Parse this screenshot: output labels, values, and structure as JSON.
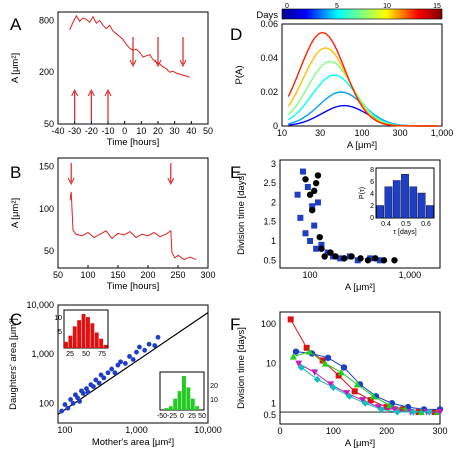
{
  "panels": {
    "A": {
      "letter": "A",
      "xlabel": "Time [hours]",
      "ylabel": "A [μm²]",
      "xticks": [
        "-40",
        "-30",
        "-20",
        "-10",
        "0",
        "10",
        "20",
        "30",
        "40",
        "50"
      ],
      "yticks": [
        "800",
        "200",
        "50"
      ]
    },
    "B": {
      "letter": "B",
      "xlabel": "Time [hours]",
      "ylabel": "A [μm²]",
      "xticks": [
        "50",
        "100",
        "150",
        "200",
        "250",
        "300"
      ],
      "yticks": [
        "150",
        "100",
        "50"
      ]
    },
    "C": {
      "letter": "C",
      "xlabel": "Mother's area [μm²]",
      "ylabel": "Daughters' area [μm²]",
      "xticks": [
        "100",
        "1,000",
        "10,000"
      ],
      "yticks": [
        "10,000",
        "1,000",
        "100"
      ],
      "inset1": {
        "xticks": [
          "25",
          "50",
          "75"
        ],
        "yticks": [
          "10",
          "5"
        ]
      },
      "inset2": {
        "xticks": [
          "-50",
          "-25",
          "0",
          "25",
          "50"
        ],
        "yticks": [
          "10",
          "20"
        ]
      }
    },
    "D": {
      "letter": "D",
      "xlabel": "A [μm²]",
      "ylabel": "P(A)",
      "colorbar_label": "Days",
      "colorbar_ticks": [
        "0",
        "5",
        "10",
        "15"
      ],
      "xticks": [
        "10",
        "30",
        "100",
        "300",
        "1,000"
      ],
      "yticks": [
        "0.06",
        "0.04",
        "0.02",
        "0"
      ]
    },
    "E": {
      "letter": "E",
      "xlabel": "A [μm²]",
      "ylabel": "Division time [days]",
      "xticks": [
        "100",
        "1,000"
      ],
      "yticks": [
        "3",
        "2.5",
        "2",
        "1.5",
        "1",
        "0.5"
      ],
      "inset": {
        "xlabel": "τ [days]",
        "ylabel": "P(τ)",
        "xticks": [
          "0.4",
          "0.5",
          "0.6"
        ],
        "yticks": [
          "8",
          "6",
          "4",
          "2",
          "0"
        ]
      }
    },
    "F": {
      "letter": "F",
      "xlabel": "A [μm²]",
      "ylabel": "Division time [days]",
      "xticks": [
        "0",
        "100",
        "200",
        "300"
      ],
      "yticks": [
        "100",
        "10",
        "1",
        "0.5"
      ]
    }
  },
  "colors": {
    "trace": "#e02020",
    "blue": "#1e3ec8",
    "black": "#000000",
    "red_hist": "#e01010",
    "green_hist": "#22cc22"
  },
  "chart_data": [
    {
      "panel": "A",
      "type": "line",
      "xlim": [
        -40,
        50
      ],
      "ylim_log": [
        50,
        1000
      ],
      "series": [
        {
          "x": [
            -33,
            -31,
            -29,
            -27,
            -25,
            -23,
            -21,
            -19,
            -17,
            -15,
            -13,
            -11,
            -9,
            -7,
            -5,
            -3,
            -1,
            1,
            3,
            5,
            7,
            9,
            11,
            13,
            15,
            17,
            19,
            21,
            23,
            25,
            27,
            29,
            31,
            33,
            35,
            37,
            39
          ],
          "y": [
            620,
            760,
            900,
            780,
            850,
            820,
            760,
            880,
            740,
            800,
            700,
            640,
            700,
            600,
            560,
            520,
            480,
            420,
            380,
            360,
            370,
            340,
            300,
            310,
            320,
            280,
            260,
            250,
            230,
            220,
            200,
            205,
            195,
            190,
            185,
            180,
            175
          ]
        }
      ],
      "arrows_up_x": [
        -30,
        -20,
        -10
      ],
      "arrows_down_x": [
        5,
        20,
        35
      ]
    },
    {
      "panel": "B",
      "type": "line",
      "xlim": [
        50,
        300
      ],
      "ylim": [
        30,
        160
      ],
      "series": [
        {
          "x": [
            70,
            72,
            75,
            80,
            90,
            100,
            110,
            120,
            130,
            140,
            150,
            160,
            170,
            180,
            190,
            200,
            210,
            220,
            230,
            238,
            240,
            245,
            250,
            260,
            270,
            280
          ],
          "y": [
            110,
            120,
            75,
            70,
            68,
            72,
            66,
            70,
            74,
            65,
            71,
            69,
            73,
            66,
            70,
            68,
            72,
            67,
            70,
            74,
            48,
            42,
            45,
            40,
            43,
            40
          ]
        }
      ],
      "arrows_down_x": [
        72,
        238
      ]
    },
    {
      "panel": "C",
      "type": "scatter",
      "xlim_log": [
        80,
        10000
      ],
      "ylim_log": [
        40,
        10000
      ],
      "points": [
        [
          90,
          70
        ],
        [
          100,
          95
        ],
        [
          110,
          80
        ],
        [
          120,
          120
        ],
        [
          130,
          100
        ],
        [
          140,
          150
        ],
        [
          150,
          130
        ],
        [
          160,
          110
        ],
        [
          170,
          180
        ],
        [
          180,
          160
        ],
        [
          200,
          200
        ],
        [
          210,
          170
        ],
        [
          230,
          240
        ],
        [
          250,
          220
        ],
        [
          270,
          300
        ],
        [
          300,
          260
        ],
        [
          320,
          380
        ],
        [
          350,
          330
        ],
        [
          400,
          420
        ],
        [
          450,
          500
        ],
        [
          500,
          420
        ],
        [
          550,
          600
        ],
        [
          600,
          700
        ],
        [
          700,
          650
        ],
        [
          800,
          900
        ],
        [
          900,
          780
        ],
        [
          1000,
          1100
        ],
        [
          1100,
          1400
        ],
        [
          1300,
          1200
        ],
        [
          1500,
          1600
        ],
        [
          1800,
          1500
        ],
        [
          2000,
          2200
        ]
      ],
      "fit_line": {
        "x": [
          80,
          10000
        ],
        "y": [
          60,
          7000
        ]
      },
      "inset1_hist": {
        "bins": [
          25,
          30,
          35,
          40,
          45,
          50,
          55,
          60,
          65,
          70
        ],
        "counts": [
          2,
          4,
          7,
          9,
          11,
          10,
          8,
          5,
          3,
          1
        ]
      },
      "inset2_hist": {
        "bins": [
          -50,
          -40,
          -30,
          -20,
          -10,
          0,
          10,
          20,
          30,
          40
        ],
        "counts": [
          0,
          1,
          2,
          6,
          10,
          18,
          12,
          6,
          2,
          0
        ]
      }
    },
    {
      "panel": "D",
      "type": "line",
      "xlim_log": [
        10,
        1000
      ],
      "ylim": [
        0,
        0.06
      ],
      "series": [
        {
          "day": 0,
          "peak_x": 60,
          "peak_y": 0.012
        },
        {
          "day": 3,
          "peak_x": 55,
          "peak_y": 0.02
        },
        {
          "day": 6,
          "peak_x": 45,
          "peak_y": 0.03
        },
        {
          "day": 9,
          "peak_x": 40,
          "peak_y": 0.038
        },
        {
          "day": 12,
          "peak_x": 35,
          "peak_y": 0.046
        },
        {
          "day": 15,
          "peak_x": 32,
          "peak_y": 0.055
        }
      ]
    },
    {
      "panel": "E",
      "type": "scatter",
      "xlim_log": [
        50,
        2000
      ],
      "ylim": [
        0.3,
        3
      ],
      "series": [
        {
          "marker": "square",
          "color": "blue",
          "points": [
            [
              75,
              2.2
            ],
            [
              80,
              1.6
            ],
            [
              85,
              2.8
            ],
            [
              90,
              1.2
            ],
            [
              95,
              2.4
            ],
            [
              100,
              1.0
            ],
            [
              105,
              1.9
            ],
            [
              110,
              1.4
            ],
            [
              115,
              0.8
            ],
            [
              120,
              2.0
            ],
            [
              130,
              0.9
            ],
            [
              150,
              0.7
            ],
            [
              170,
              0.6
            ],
            [
              200,
              0.55
            ],
            [
              250,
              0.6
            ],
            [
              300,
              0.5
            ],
            [
              400,
              0.55
            ],
            [
              500,
              0.5
            ]
          ]
        },
        {
          "marker": "circle",
          "color": "black",
          "points": [
            [
              90,
              2.6
            ],
            [
              100,
              2.2
            ],
            [
              105,
              1.8
            ],
            [
              110,
              2.3
            ],
            [
              115,
              2.5
            ],
            [
              120,
              2.7
            ],
            [
              125,
              1.1
            ],
            [
              130,
              0.8
            ],
            [
              140,
              0.6
            ],
            [
              160,
              0.7
            ],
            [
              180,
              0.6
            ],
            [
              220,
              0.55
            ],
            [
              260,
              0.6
            ],
            [
              320,
              0.55
            ],
            [
              380,
              0.5
            ],
            [
              450,
              0.55
            ],
            [
              550,
              0.5
            ],
            [
              700,
              0.5
            ]
          ]
        }
      ],
      "inset": {
        "type": "bar",
        "bins": [
          0.35,
          0.4,
          0.45,
          0.5,
          0.55,
          0.6,
          0.65
        ],
        "counts": [
          2,
          5,
          6,
          7,
          5,
          4,
          2
        ]
      }
    },
    {
      "panel": "F",
      "type": "line",
      "xlim": [
        0,
        300
      ],
      "ylim_log": [
        0.3,
        200
      ],
      "series": [
        {
          "color": "#e01010",
          "marker": "square",
          "x": [
            20,
            50,
            80,
            110,
            140,
            170,
            200,
            230,
            260,
            290
          ],
          "y": [
            130,
            25,
            12,
            5,
            2,
            1.2,
            0.8,
            0.7,
            0.6,
            0.6
          ]
        },
        {
          "color": "#1e3ec8",
          "marker": "circle",
          "x": [
            30,
            60,
            90,
            120,
            150,
            180,
            210,
            240,
            270,
            300
          ],
          "y": [
            20,
            18,
            14,
            8,
            3,
            1.5,
            1.0,
            0.8,
            0.7,
            0.7
          ]
        },
        {
          "color": "#22cc22",
          "marker": "triangle-up",
          "x": [
            25,
            55,
            85,
            115,
            145,
            175,
            205,
            235,
            265,
            295
          ],
          "y": [
            15,
            20,
            10,
            6,
            3,
            1.5,
            0.9,
            0.7,
            0.6,
            0.6
          ]
        },
        {
          "color": "#c020c0",
          "marker": "triangle-down",
          "x": [
            35,
            65,
            95,
            125,
            155,
            185,
            215,
            245,
            275,
            300
          ],
          "y": [
            10,
            6,
            3,
            1.8,
            1.2,
            0.8,
            0.7,
            0.6,
            0.6,
            0.6
          ]
        },
        {
          "color": "#10c0c0",
          "marker": "diamond",
          "x": [
            40,
            70,
            100,
            130,
            160,
            190,
            220,
            250,
            280
          ],
          "y": [
            8,
            4,
            2.5,
            1.5,
            1.0,
            0.7,
            0.6,
            0.6,
            0.6
          ]
        }
      ],
      "hline_y": 0.6
    }
  ]
}
